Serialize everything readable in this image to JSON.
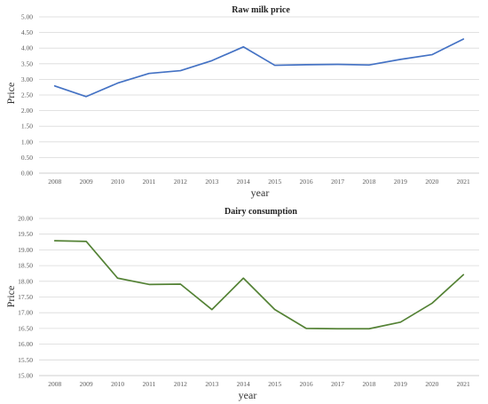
{
  "chart_data": [
    {
      "type": "line",
      "title": "Raw milk price",
      "xlabel": "year",
      "ylabel": "Price",
      "ylim": [
        0,
        5
      ],
      "ytick_step": 0.5,
      "ytick_decimals": 2,
      "categories": [
        "2008",
        "2009",
        "2010",
        "2011",
        "2012",
        "2013",
        "2014",
        "2015",
        "2016",
        "2017",
        "2018",
        "2019",
        "2020",
        "2021"
      ],
      "series": [
        {
          "color": "#4472C4",
          "values": [
            2.79,
            2.45,
            2.88,
            3.19,
            3.28,
            3.6,
            4.04,
            3.45,
            3.47,
            3.48,
            3.46,
            3.64,
            3.79,
            4.29
          ]
        }
      ],
      "grid": true,
      "legend": "none"
    },
    {
      "type": "line",
      "title": "Dairy consumption",
      "xlabel": "year",
      "ylabel": "Price",
      "ylim": [
        15,
        20
      ],
      "ytick_step": 0.5,
      "ytick_decimals": 2,
      "categories": [
        "2008",
        "2009",
        "2010",
        "2011",
        "2012",
        "2013",
        "2014",
        "2015",
        "2016",
        "2017",
        "2018",
        "2019",
        "2020",
        "2021"
      ],
      "series": [
        {
          "color": "#548235",
          "values": [
            19.29,
            19.27,
            18.1,
            17.9,
            17.91,
            17.1,
            18.1,
            17.1,
            16.5,
            16.49,
            16.49,
            16.7,
            17.3,
            18.21
          ]
        }
      ],
      "grid": true,
      "legend": "none"
    }
  ]
}
